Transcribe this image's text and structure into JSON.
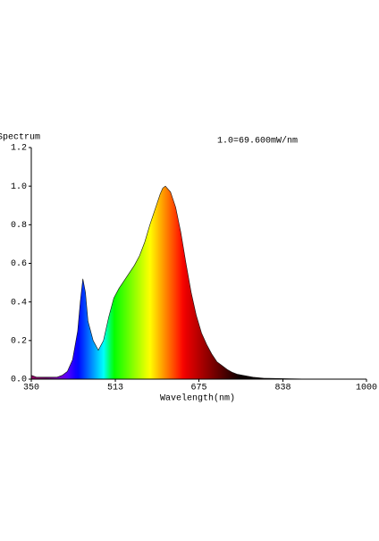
{
  "chart_data": {
    "type": "area",
    "title": "Spectrum",
    "annotation": "1.0=69.600mW/nm",
    "xlabel": "Wavelength(nm)",
    "x": [
      350,
      360,
      370,
      380,
      390,
      400,
      410,
      420,
      430,
      440,
      445,
      450,
      455,
      460,
      470,
      480,
      490,
      500,
      510,
      520,
      530,
      540,
      550,
      560,
      570,
      580,
      590,
      600,
      605,
      610,
      620,
      630,
      640,
      650,
      660,
      670,
      680,
      690,
      700,
      710,
      720,
      730,
      740,
      750,
      760,
      780,
      800,
      850,
      900,
      1000
    ],
    "values": [
      0.02,
      0.01,
      0.01,
      0.01,
      0.01,
      0.01,
      0.02,
      0.04,
      0.1,
      0.25,
      0.4,
      0.52,
      0.45,
      0.3,
      0.2,
      0.15,
      0.2,
      0.32,
      0.42,
      0.47,
      0.51,
      0.55,
      0.59,
      0.64,
      0.71,
      0.8,
      0.88,
      0.96,
      0.99,
      1.0,
      0.97,
      0.89,
      0.76,
      0.6,
      0.45,
      0.33,
      0.24,
      0.18,
      0.13,
      0.09,
      0.07,
      0.05,
      0.035,
      0.025,
      0.02,
      0.01,
      0.005,
      0.002,
      0,
      0
    ],
    "xlim": [
      350,
      1000
    ],
    "xticks": [
      350,
      513,
      675,
      838,
      1000
    ],
    "ylim": [
      0,
      1.2
    ],
    "yticks": [
      {
        "value": 0,
        "label": "0.0"
      },
      0.2,
      0.4,
      0.6,
      0.8,
      {
        "value": 1,
        "label": "1.0"
      },
      1.2
    ]
  }
}
